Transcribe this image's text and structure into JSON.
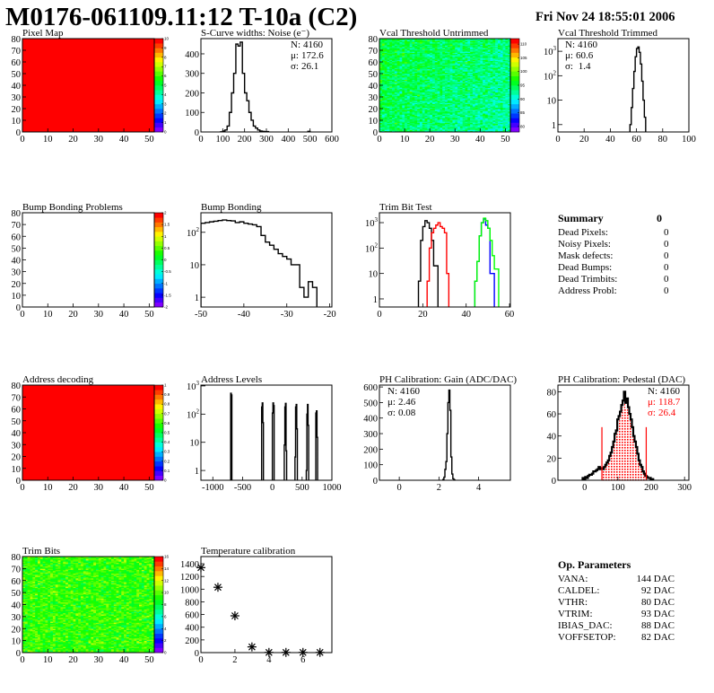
{
  "header": {
    "title": "M0176-061109.11:12 T-10a (C2)",
    "date": "Fri Nov 24 18:55:01 2006"
  },
  "chart_data": [
    {
      "type": "heatmap",
      "title": "Pixel Map",
      "xlim": [
        0,
        52
      ],
      "ylim": [
        0,
        80
      ],
      "z_range": [
        0,
        10
      ],
      "xticks": [
        0,
        10,
        20,
        30,
        40,
        50
      ],
      "yticks": [
        0,
        10,
        20,
        30,
        40,
        50,
        60,
        70,
        80
      ],
      "palette_ticks": [
        0,
        1,
        2,
        3,
        4,
        5,
        6,
        7,
        8,
        9,
        10
      ],
      "uniform_value": 10
    },
    {
      "type": "bar",
      "title": "S-Curve widths: Noise (e⁻)",
      "xlim": [
        0,
        600
      ],
      "ylim": [
        0,
        478
      ],
      "ylog": false,
      "xticks": [
        0,
        100,
        200,
        300,
        400,
        500,
        600
      ],
      "yticks": [
        0,
        100,
        200,
        300,
        400
      ],
      "stats": [
        {
          "label": "N:",
          "value": "4160"
        },
        {
          "label": "μ:",
          "value": "172.6"
        },
        {
          "label": "σ:",
          "value": "26.1"
        }
      ],
      "series": [
        {
          "color": "#000000",
          "x_start": 90,
          "bin_width": 10,
          "values": [
            1,
            5,
            10,
            30,
            100,
            200,
            300,
            450,
            440,
            460,
            300,
            200,
            160,
            100,
            60,
            30,
            20,
            10,
            5,
            3,
            2,
            2,
            0
          ]
        },
        {
          "color": "#000000",
          "x_start": 480,
          "bin_width": 10,
          "values": [
            0,
            3,
            0
          ]
        }
      ]
    },
    {
      "type": "heatmap",
      "title": "Vcal Threshold Untrimmed",
      "xlim": [
        0,
        52
      ],
      "ylim": [
        0,
        80
      ],
      "z_range": [
        78,
        112
      ],
      "xticks": [
        0,
        10,
        20,
        30,
        40,
        50
      ],
      "yticks": [
        0,
        10,
        20,
        30,
        40,
        50,
        60,
        70,
        80
      ],
      "palette_ticks": [
        80,
        85,
        90,
        95,
        100,
        105,
        110
      ]
    },
    {
      "type": "bar",
      "title": "Vcal Threshold Trimmed",
      "xlim": [
        0,
        100
      ],
      "ylim": [
        0.5,
        3300
      ],
      "ylog": true,
      "xticks": [
        0,
        20,
        40,
        60,
        80,
        100
      ],
      "yticks": [
        {
          "v": 1,
          "base": "1",
          "exp": ""
        },
        {
          "v": 10,
          "base": "10",
          "exp": ""
        },
        {
          "v": 100,
          "base": "10",
          "exp": "2"
        },
        {
          "v": 1000,
          "base": "10",
          "exp": "3"
        }
      ],
      "stats": [
        {
          "label": "N:",
          "value": "4160"
        },
        {
          "label": "μ:",
          "value": "60.6"
        },
        {
          "label": "σ:",
          "value": " 1.4"
        }
      ],
      "series": [
        {
          "color": "#000000",
          "x_start": 55,
          "bin_width": 1,
          "values": [
            1,
            5,
            30,
            150,
            600,
            1300,
            1500,
            900,
            300,
            60,
            10,
            2,
            0
          ]
        }
      ]
    },
    {
      "type": "heatmap",
      "title": "Bump Bonding Problems",
      "xlim": [
        0,
        52
      ],
      "ylim": [
        0,
        80
      ],
      "z_range": [
        -2,
        2
      ],
      "xticks": [
        0,
        10,
        20,
        30,
        40,
        50
      ],
      "yticks": [
        0,
        10,
        20,
        30,
        40,
        50,
        60,
        70,
        80
      ],
      "palette_ticks": [
        -2,
        -1.5,
        -1,
        -0.5,
        0,
        0.5,
        1,
        1.5,
        2
      ]
    },
    {
      "type": "bar",
      "title": "Bump Bonding",
      "xlim": [
        -50,
        -19.5
      ],
      "ylim": [
        0.5,
        400
      ],
      "ylog": true,
      "xticks": [
        -50,
        -40,
        -30,
        -20
      ],
      "yticks": [
        {
          "v": 1,
          "base": "1",
          "exp": ""
        },
        {
          "v": 10,
          "base": "10",
          "exp": ""
        },
        {
          "v": 100,
          "base": "10",
          "exp": "2"
        }
      ],
      "series": [
        {
          "color": "#000000",
          "x_start": -50,
          "bin_width": 1,
          "values": [
            190,
            200,
            210,
            220,
            230,
            240,
            230,
            225,
            200,
            210,
            190,
            180,
            170,
            150,
            80,
            50,
            40,
            30,
            22,
            18,
            15,
            10,
            10,
            2,
            1,
            3,
            2,
            0
          ]
        }
      ]
    },
    {
      "type": "bar",
      "title": "Trim Bit Test",
      "xlim": [
        0,
        60.4
      ],
      "ylim": [
        0.48,
        2450
      ],
      "ylog": true,
      "xticks": [
        0,
        20,
        40,
        60
      ],
      "yticks": [
        {
          "v": 1,
          "base": "1",
          "exp": ""
        },
        {
          "v": 10,
          "base": "10",
          "exp": ""
        },
        {
          "v": 100,
          "base": "10",
          "exp": "2"
        },
        {
          "v": 1000,
          "base": "10",
          "exp": "3"
        }
      ],
      "series": [
        {
          "color": "#000000",
          "x_start": 18,
          "bin_width": 1,
          "values": [
            5,
            200,
            700,
            1200,
            1000,
            600,
            200,
            20,
            20,
            0
          ]
        },
        {
          "color": "#ff0000",
          "x_start": 22,
          "bin_width": 1,
          "values": [
            5,
            100,
            400,
            600,
            800,
            1000,
            700,
            600,
            400,
            10,
            0
          ]
        },
        {
          "color": "#0000ff",
          "x_start": 44,
          "bin_width": 1,
          "values": [
            5,
            30,
            300,
            1000,
            1400,
            800,
            600,
            10,
            10,
            0
          ]
        },
        {
          "color": "#00ff00",
          "x_start": 44,
          "bin_width": 1,
          "values": [
            5,
            30,
            300,
            1000,
            1500,
            1200,
            600,
            200,
            50,
            15,
            15,
            0
          ]
        }
      ]
    },
    {
      "type": "heatmap",
      "title": "Address decoding",
      "xlim": [
        0,
        52
      ],
      "ylim": [
        0,
        80
      ],
      "z_range": [
        0,
        1
      ],
      "xticks": [
        0,
        10,
        20,
        30,
        40,
        50
      ],
      "yticks": [
        0,
        10,
        20,
        30,
        40,
        50,
        60,
        70,
        80
      ],
      "palette_ticks": [
        0,
        0.1,
        0.2,
        0.3,
        0.4,
        0.5,
        0.6,
        0.7,
        0.8,
        0.9,
        1
      ],
      "uniform_value": 1
    },
    {
      "type": "bar",
      "title": "Address Levels",
      "xlim": [
        -1200,
        1000
      ],
      "ylim": [
        0.45,
        1070
      ],
      "ylog": true,
      "xticks": [
        -1000,
        -500,
        0,
        500,
        1000
      ],
      "yticks": [
        {
          "v": 1,
          "base": "1",
          "exp": ""
        },
        {
          "v": 10,
          "base": "10",
          "exp": ""
        },
        {
          "v": 100,
          "base": "10",
          "exp": "2"
        },
        {
          "v": 1000,
          "base": "10",
          "exp": "3"
        }
      ],
      "series": [
        {
          "color": "#000000",
          "bin_width": 10,
          "bins": [
            [
              -700,
              550
            ],
            [
              -690,
              480
            ],
            [
              -180,
              180
            ],
            [
              -170,
              250
            ],
            [
              -160,
              50
            ],
            [
              0,
              110
            ],
            [
              10,
              250
            ],
            [
              20,
              200
            ],
            [
              200,
              8
            ],
            [
              210,
              180
            ],
            [
              220,
              240
            ],
            [
              230,
              5
            ],
            [
              380,
              3
            ],
            [
              390,
              180
            ],
            [
              400,
              220
            ],
            [
              410,
              30
            ],
            [
              570,
              1
            ],
            [
              580,
              100
            ],
            [
              590,
              220
            ],
            [
              600,
              40
            ],
            [
              730,
              110
            ],
            [
              740,
              130
            ],
            [
              750,
              15
            ]
          ]
        }
      ]
    },
    {
      "type": "bar",
      "title": "PH Calibration: Gain (ADC/DAC)",
      "xlim": [
        -1,
        5.6
      ],
      "ylim": [
        0,
        612
      ],
      "ylog": false,
      "xticks": [
        0,
        2,
        4
      ],
      "yticks": [
        0,
        100,
        200,
        300,
        400,
        500,
        600
      ],
      "stats": [
        {
          "label": "N:",
          "value": "4160"
        },
        {
          "label": "μ:",
          "value": "2.46"
        },
        {
          "label": "σ:",
          "value": "0.08"
        }
      ],
      "series": [
        {
          "color": "#000000",
          "x_start": 2.2,
          "bin_width": 0.05,
          "values": [
            5,
            20,
            70,
            120,
            300,
            500,
            580,
            450,
            150,
            40,
            10,
            3,
            0
          ]
        }
      ]
    },
    {
      "type": "bar",
      "title": "PH Calibration: Pedestal (DAC)",
      "xlim": [
        -80,
        313
      ],
      "ylim": [
        0,
        86
      ],
      "ylog": false,
      "xticks": [
        0,
        100,
        200,
        300
      ],
      "yticks": [
        0,
        20,
        40,
        60,
        80
      ],
      "stats": [
        {
          "label": "N:",
          "value": "4160",
          "color": "#000000"
        },
        {
          "label": "μ:",
          "value": "118.7",
          "color": "#ff0000"
        },
        {
          "label": "σ:",
          "value": "26.4",
          "color": "#ff0000"
        }
      ],
      "fit_range": [
        52,
        185
      ],
      "fit_color": "#ff0000",
      "series": [
        {
          "color": "#000000",
          "x_start": -10,
          "bin_width": 4,
          "values": [
            0,
            2,
            0,
            3,
            2,
            4,
            5,
            5,
            6,
            8,
            8,
            9,
            10,
            12,
            10,
            11,
            10,
            12,
            14,
            16,
            18,
            22,
            25,
            30,
            35,
            42,
            45,
            55,
            58,
            62,
            68,
            72,
            80,
            70,
            74,
            66,
            60,
            55,
            48,
            40,
            35,
            30,
            24,
            18,
            14,
            12,
            8,
            6,
            4,
            3,
            2,
            2,
            1,
            1,
            0
          ]
        }
      ]
    },
    {
      "type": "heatmap",
      "title": "Trim Bits",
      "xlim": [
        0,
        52
      ],
      "ylim": [
        0,
        80
      ],
      "z_range": [
        0,
        16
      ],
      "xticks": [
        0,
        10,
        20,
        30,
        40,
        50
      ],
      "yticks": [
        0,
        10,
        20,
        30,
        40,
        50,
        60,
        70,
        80
      ],
      "palette_ticks": [
        0,
        2,
        4,
        6,
        8,
        10,
        12,
        14,
        16
      ]
    },
    {
      "type": "scatter",
      "title": "Temperature calibration",
      "xlim": [
        0,
        7.7
      ],
      "ylim": [
        0,
        1514
      ],
      "ylog": false,
      "xticks": [
        0,
        2,
        4,
        6
      ],
      "yticks": [
        0,
        200,
        400,
        600,
        800,
        1000,
        1200,
        1400
      ],
      "points": [
        [
          0,
          1340
        ],
        [
          1,
          1030
        ],
        [
          2,
          580
        ],
        [
          3,
          90
        ],
        [
          4,
          3
        ],
        [
          5,
          3
        ],
        [
          6,
          3
        ],
        [
          7,
          3
        ]
      ]
    }
  ],
  "summary": {
    "title": "Summary",
    "total": "0",
    "rows": [
      {
        "label": "Dead Pixels:",
        "value": "0"
      },
      {
        "label": "Noisy Pixels:",
        "value": "0"
      },
      {
        "label": "Mask defects:",
        "value": "0"
      },
      {
        "label": "Dead Bumps:",
        "value": "0"
      },
      {
        "label": "Dead Trimbits:",
        "value": "0"
      },
      {
        "label": "Address Probl:",
        "value": "0"
      }
    ]
  },
  "op_parameters": {
    "title": "Op. Parameters",
    "rows": [
      {
        "label": "VANA:",
        "value": "144 DAC"
      },
      {
        "label": "CALDEL:",
        "value": "92 DAC"
      },
      {
        "label": "VTHR:",
        "value": "80 DAC"
      },
      {
        "label": "VTRIM:",
        "value": "93 DAC"
      },
      {
        "label": "IBIAS_DAC:",
        "value": "88 DAC"
      },
      {
        "label": "VOFFSETOP:",
        "value": "82 DAC"
      }
    ]
  }
}
